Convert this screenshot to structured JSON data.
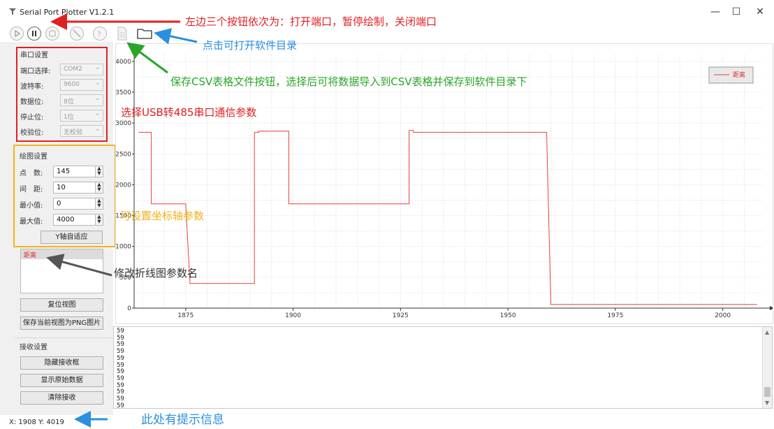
{
  "window": {
    "title": "Serial Port Plotter V1.2.1",
    "min": "—",
    "max": "☐",
    "close": "✕"
  },
  "serial_group": {
    "title": "串口设置",
    "rows": [
      {
        "label": "端口选择:",
        "value": "COM2"
      },
      {
        "label": "波特率:",
        "value": "9600"
      },
      {
        "label": "数据位:",
        "value": "8位"
      },
      {
        "label": "停止位:",
        "value": "1位"
      },
      {
        "label": "校验位:",
        "value": "无校验"
      }
    ]
  },
  "plot_group": {
    "title": "绘图设置",
    "rows": [
      {
        "label": "点　数:",
        "value": "145"
      },
      {
        "label": "间　距:",
        "value": "10"
      },
      {
        "label": "最小值:",
        "value": "0"
      },
      {
        "label": "最大值:",
        "value": "4000"
      }
    ],
    "autofit_label": "Y轴自适应"
  },
  "channel_list": {
    "items": [
      "距离"
    ]
  },
  "buttons": {
    "reset_view": "复位视图",
    "save_png": "保存当前视图为PNG图片",
    "hide_recv": "隐藏接收框",
    "show_raw": "显示原始数据",
    "clear_recv": "清除接收"
  },
  "recv_group": {
    "title": "接收设置"
  },
  "status": {
    "text": "X: 1908 Y: 4019"
  },
  "console": {
    "lines": [
      "59",
      "59",
      "59",
      "59",
      "59",
      "59",
      "59",
      "59",
      "59",
      "59",
      "59",
      "59"
    ]
  },
  "annotations": {
    "three_buttons": "左边三个按钮依次为：打开端口，暂停绘制，关闭端口",
    "open_dir": "点击可打开软件目录",
    "csv": "保存CSV表格文件按钮，选择后可将数据导入到CSV表格并保存到软件目录下",
    "usb485": "选择USB转485串口通信参数",
    "axis_params": "可设置坐标轴参数",
    "rename": "修改折线图参数名",
    "hint": "此处有提示信息"
  },
  "colors": {
    "line": "#e8413a",
    "red_box": "#e02020",
    "orange_box": "#f5b21a",
    "green": "#2aa52a",
    "blue": "#2a8fe0"
  },
  "chart_data": {
    "type": "line",
    "series": [
      {
        "name": "距离",
        "x": [
          1864,
          1867,
          1867,
          1875,
          1875,
          1876,
          1876,
          1890,
          1890,
          1891,
          1891,
          1892,
          1892,
          1897,
          1897,
          1898,
          1898,
          1899,
          1899,
          1900,
          1900,
          1901,
          1901,
          1927,
          1927,
          1928,
          1928,
          1929,
          1929,
          1930,
          1930,
          1959,
          1959,
          1960,
          1960,
          2008
        ],
        "y": [
          2850,
          2850,
          1690,
          1690,
          1690,
          400,
          400,
          400,
          400,
          400,
          2850,
          2850,
          2870,
          2870,
          2870,
          2870,
          2870,
          2870,
          1690,
          1690,
          1690,
          1690,
          1690,
          1690,
          2880,
          2880,
          2850,
          2850,
          2850,
          2850,
          2850,
          2850,
          2850,
          60,
          60,
          60
        ]
      }
    ],
    "xlim": [
      1863,
      2009
    ],
    "ylim": [
      0,
      4100
    ],
    "xticks": [
      1875,
      1900,
      1925,
      1950,
      1975,
      2000
    ],
    "yticks": [
      0,
      500,
      1000,
      1500,
      2000,
      2500,
      3000,
      3500,
      4000
    ],
    "legend": "top-right",
    "grid": true
  }
}
